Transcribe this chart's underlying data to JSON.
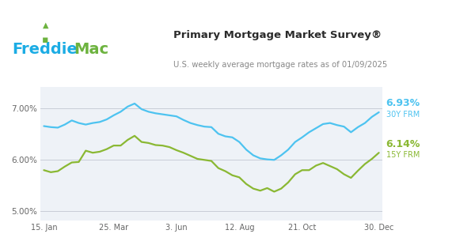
{
  "title": "Primary Mortgage Market Survey®",
  "subtitle": "U.S. weekly average mortgage rates as of 01/09/2025",
  "freddie_blue": "#1BACE4",
  "freddie_green": "#6DB33F",
  "line_30y_color": "#4DC3F0",
  "line_15y_color": "#8AB833",
  "plot_bg": "#EEF2F7",
  "ylim": [
    4.82,
    7.42
  ],
  "yticks": [
    5.0,
    6.0,
    7.0
  ],
  "ytick_labels": [
    "5.00%",
    "6.00%",
    "7.00%"
  ],
  "xtick_labels": [
    "15. Jan",
    "25. Mar",
    "3. Jun",
    "12. Aug",
    "21. Oct",
    "30. Dec"
  ],
  "xtick_positions": [
    0,
    10,
    19,
    28,
    37,
    48
  ],
  "label_30y": "6.93%",
  "label_30y_sub": "30Y FRM",
  "label_15y": "6.14%",
  "label_15y_sub": "15Y FRM",
  "rate_30y": [
    6.66,
    6.64,
    6.63,
    6.69,
    6.77,
    6.72,
    6.69,
    6.72,
    6.74,
    6.79,
    6.87,
    6.94,
    7.04,
    7.1,
    6.99,
    6.94,
    6.91,
    6.89,
    6.87,
    6.85,
    6.78,
    6.72,
    6.68,
    6.65,
    6.64,
    6.51,
    6.46,
    6.44,
    6.35,
    6.2,
    6.09,
    6.03,
    6.01,
    6.0,
    6.09,
    6.2,
    6.35,
    6.44,
    6.54,
    6.62,
    6.7,
    6.72,
    6.68,
    6.65,
    6.54,
    6.64,
    6.72,
    6.84,
    6.93
  ],
  "rate_15y": [
    5.8,
    5.76,
    5.78,
    5.87,
    5.95,
    5.96,
    6.18,
    6.14,
    6.16,
    6.21,
    6.28,
    6.28,
    6.39,
    6.47,
    6.35,
    6.33,
    6.29,
    6.28,
    6.25,
    6.19,
    6.14,
    6.08,
    6.02,
    6.0,
    5.98,
    5.84,
    5.78,
    5.7,
    5.66,
    5.53,
    5.44,
    5.4,
    5.45,
    5.38,
    5.44,
    5.56,
    5.72,
    5.8,
    5.8,
    5.89,
    5.94,
    5.88,
    5.82,
    5.72,
    5.65,
    5.79,
    5.92,
    6.02,
    6.14
  ]
}
